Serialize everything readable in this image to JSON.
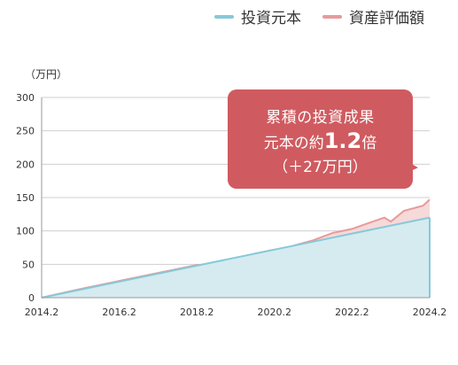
{
  "legend": {
    "principal_label": "投資元本",
    "valuation_label": "資産評価額"
  },
  "colors": {
    "principal_line": "#86c9d8",
    "principal_fill": "#d5ebf0",
    "valuation_line": "#e89a9c",
    "valuation_fill": "#f6d9d9",
    "axis": "#9a9a9a",
    "grid": "#cfcfcf",
    "callout_bg": "#cf5b60"
  },
  "unit_label": "（万円）",
  "callout": {
    "line1": "累積の投資成果",
    "line2_prefix": "元本の約",
    "line2_number": "1.2",
    "line2_suffix": "倍",
    "line3": "（＋27万円）"
  },
  "chart_data": {
    "type": "area",
    "xlabel": "",
    "ylabel": "（万円）",
    "x_start": "2014.2",
    "x_end": "2024.2",
    "ylim": [
      0,
      300
    ],
    "yticks": [
      0,
      50,
      100,
      150,
      200,
      250,
      300
    ],
    "xticks": [
      "2014.2",
      "2016.2",
      "2018.2",
      "2020.2",
      "2022.2",
      "2024.2"
    ],
    "grid": true,
    "legend_position": "top-right",
    "series": [
      {
        "name": "投資元本",
        "x": [
          "2014.2",
          "2024.2"
        ],
        "values": [
          0,
          120
        ]
      },
      {
        "name": "資産評価額",
        "x": [
          "2014.2",
          "2015.2",
          "2016.2",
          "2017.2",
          "2018.2",
          "2018.8",
          "2019.2",
          "2019.8",
          "2020.2",
          "2020.4",
          "2020.8",
          "2021.2",
          "2021.8",
          "2022.2",
          "2022.6",
          "2023.0",
          "2023.2",
          "2023.6",
          "2024.0",
          "2024.2"
        ],
        "values": [
          0,
          13,
          25,
          37,
          49,
          50,
          58,
          66,
          72,
          69,
          78,
          86,
          97,
          103,
          110,
          120,
          114,
          130,
          138,
          147
        ]
      }
    ]
  }
}
